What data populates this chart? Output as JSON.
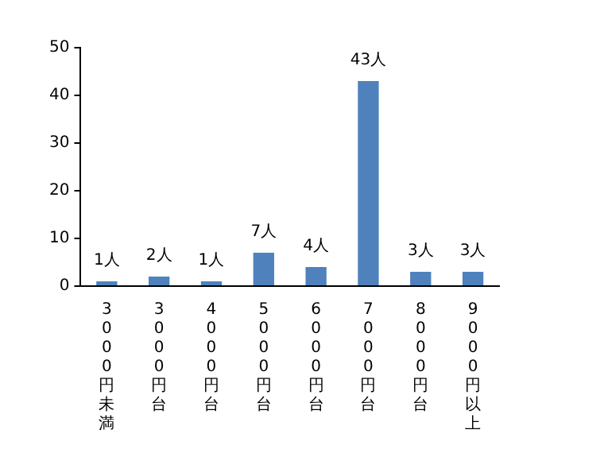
{
  "chart_data": {
    "type": "bar",
    "categories": [
      "3000円未満",
      "3000円台",
      "4000円台",
      "5000円台",
      "6000円台",
      "7000円台",
      "8000円台",
      "9000円以上"
    ],
    "values": [
      1,
      2,
      1,
      7,
      4,
      43,
      3,
      3
    ],
    "value_labels": [
      "1人",
      "2人",
      "1人",
      "7人",
      "4人",
      "43人",
      "3人",
      "3人"
    ],
    "color": "#4f81bd",
    "ylim": [
      0,
      50
    ],
    "yticks": [
      0,
      10,
      20,
      30,
      40,
      50
    ],
    "grid": false,
    "legend": false
  }
}
